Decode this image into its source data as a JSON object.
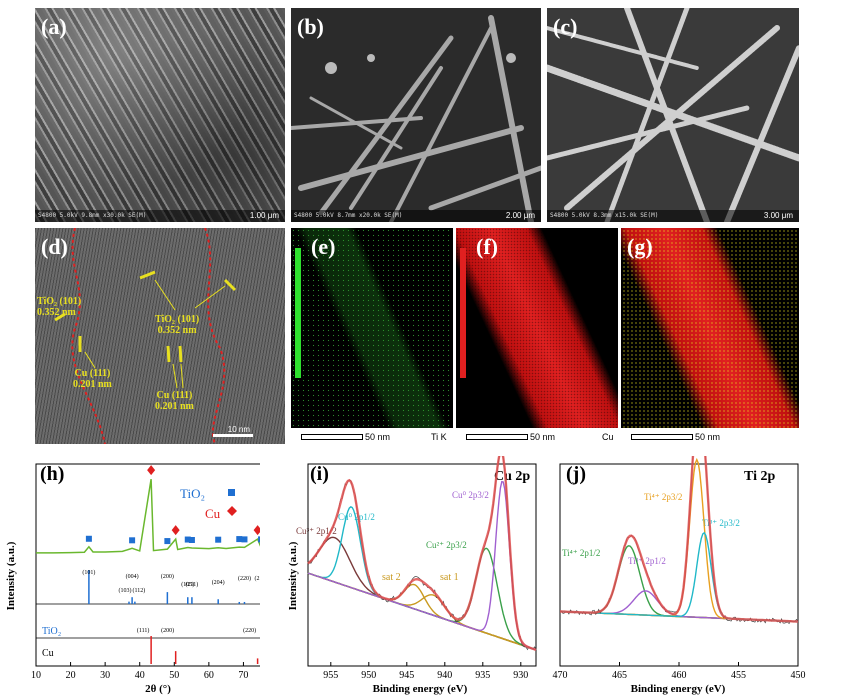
{
  "panels": {
    "a": {
      "label": "(a)",
      "info": "S4800 5.0kV 9.8mm x30.0k SE(M)",
      "scale": "1.00 μm"
    },
    "b": {
      "label": "(b)",
      "info": "S4800 5.0kV 8.7mm x20.0k SE(M)",
      "scale": "2.00 μm"
    },
    "c": {
      "label": "(c)",
      "info": "S4800 5.0kV 8.3mm x15.0k SE(M)",
      "scale": "3.00 μm"
    },
    "d": {
      "label": "(d)",
      "scale": "10 nm",
      "anno1": "TiO₂ (101)",
      "anno1b": "0.352 nm",
      "anno2": "TiO₂ (101)",
      "anno2b": "0.352 nm",
      "anno3": "Cu (111)",
      "anno3b": "0.201 nm",
      "anno4": "Cu (111)",
      "anno4b": "0.201 nm"
    },
    "e": {
      "label": "(e)",
      "scale": "50 nm",
      "element": "Ti K"
    },
    "f": {
      "label": "(f)",
      "scale": "50 nm",
      "element": "Cu"
    },
    "g": {
      "label": "(g)",
      "scale": "50 nm"
    }
  },
  "colors": {
    "tio2": "#1f6fd1",
    "cu": "#e02020",
    "xrd_line": "#6ab82e",
    "orange": "#e07a10"
  },
  "chart_data": [
    {
      "id": "h",
      "type": "line",
      "label": "(h)",
      "xlabel": "2θ (°)",
      "ylabel": "Intensity (a.u.)",
      "xlim": [
        10,
        80
      ],
      "xticks": [
        "10",
        "20",
        "30",
        "40",
        "50",
        "60",
        "70",
        "80"
      ],
      "legend": [
        {
          "name": "TiO₂",
          "marker": "square"
        },
        {
          "name": "Cu",
          "marker": "diamond"
        }
      ],
      "series": [
        {
          "name": "composite",
          "x": [
            10,
            15,
            20,
            24,
            25.3,
            26.5,
            30,
            35,
            37.8,
            40,
            43.3,
            44,
            48,
            50.4,
            51,
            53.9,
            55.1,
            60,
            62.7,
            65,
            68.8,
            70.3,
            74.1,
            75.1,
            78,
            80
          ],
          "y": [
            2,
            2,
            2.2,
            2.5,
            6,
            2.6,
            2.6,
            3,
            5,
            3.3,
            50,
            3.5,
            4.5,
            11,
            4.2,
            5.5,
            5.2,
            4.8,
            5.4,
            4.9,
            5.8,
            5.6,
            11,
            5.6,
            5,
            5
          ]
        }
      ],
      "tio2_markers": [
        25.3,
        37.8,
        48.0,
        53.9,
        55.1,
        62.7,
        68.8,
        70.3,
        75.1
      ],
      "cu_markers": [
        43.3,
        50.4,
        74.1
      ],
      "ref_tio2": {
        "name": "TiO₂",
        "peaks": [
          [
            25.3,
            100
          ],
          [
            36.9,
            7
          ],
          [
            37.8,
            20
          ],
          [
            38.6,
            7
          ],
          [
            48.0,
            35
          ],
          [
            53.9,
            20
          ],
          [
            55.1,
            20
          ],
          [
            62.7,
            14
          ],
          [
            68.8,
            6
          ],
          [
            70.3,
            6
          ],
          [
            75.1,
            10
          ]
        ],
        "labels": [
          [
            "(101)",
            25.3
          ],
          [
            "(103)",
            36.9
          ],
          [
            "(004)",
            37.8
          ],
          [
            "(112)",
            38.6
          ],
          [
            "(200)",
            48.0
          ],
          [
            "(105)",
            53.9
          ],
          [
            "(211)",
            55.1
          ],
          [
            "(204)",
            62.7
          ],
          [
            "(220)",
            70.3
          ],
          [
            "(215)",
            75.1
          ]
        ]
      },
      "ref_cu": {
        "name": "Cu",
        "peaks": [
          [
            43.3,
            100
          ],
          [
            50.4,
            46
          ],
          [
            74.1,
            20
          ]
        ],
        "labels": [
          [
            "(111)",
            43.3
          ],
          [
            "(200)",
            50.4
          ],
          [
            "(220)",
            74.1
          ]
        ]
      }
    },
    {
      "id": "i",
      "type": "line",
      "label": "(i)",
      "title": "Cu 2p",
      "xlabel": "Binding energy (eV)",
      "ylabel": "Intensity (a.u.)",
      "xlim": [
        958,
        928
      ],
      "xticks": [
        "955",
        "950",
        "945",
        "940",
        "935",
        "930"
      ],
      "peaks": [
        {
          "name": "Cu³⁺ 2p1/2",
          "center": 954.5,
          "height": 0.22,
          "width": 2.0,
          "color": "#7a3a3a"
        },
        {
          "name": "Cu⁰ 2p1/2",
          "center": 952.3,
          "height": 0.4,
          "width": 1.2,
          "color": "#20b8c8"
        },
        {
          "name": "sat 2",
          "center": 944.0,
          "height": 0.12,
          "width": 1.3,
          "color": "#c99a20"
        },
        {
          "name": "sat 1",
          "center": 941.5,
          "height": 0.1,
          "width": 1.5,
          "color": "#c99a20"
        },
        {
          "name": "Cu²⁺ 2p3/2",
          "center": 934.5,
          "height": 0.42,
          "width": 1.4,
          "color": "#3aa04a"
        },
        {
          "name": "Cu⁰ 2p3/2",
          "center": 932.4,
          "height": 0.78,
          "width": 0.9,
          "color": "#a060d0"
        }
      ],
      "labels": {
        "p1": "Cu³⁺ 2p1/2",
        "p2": "Cu⁰ 2p1/2",
        "p3": "sat 2",
        "p4": "sat 1",
        "p5": "Cu²⁺ 2p3/2",
        "p6": "Cu⁰ 2p3/2"
      }
    },
    {
      "id": "j",
      "type": "line",
      "label": "(j)",
      "title": "Ti 2p",
      "xlabel": "Binding energy (eV)",
      "ylabel": "",
      "xlim": [
        470,
        450
      ],
      "xticks": [
        "470",
        "465",
        "460",
        "455",
        "450"
      ],
      "peaks": [
        {
          "name": "Ti⁴⁺ 2p1/2",
          "center": 464.2,
          "height": 0.34,
          "width": 0.9,
          "color": "#3aa04a"
        },
        {
          "name": "Ti³⁺ 2p1/2",
          "center": 462.8,
          "height": 0.12,
          "width": 1.0,
          "color": "#a060d0"
        },
        {
          "name": "Ti⁴⁺ 2p3/2",
          "center": 458.5,
          "height": 0.78,
          "width": 0.6,
          "color": "#e8a020"
        },
        {
          "name": "Ti³⁺ 2p3/2",
          "center": 457.9,
          "height": 0.42,
          "width": 0.6,
          "color": "#20b8c8"
        }
      ],
      "labels": {
        "p1": "Ti⁴⁺ 2p1/2",
        "p2": "Ti³⁺ 2p1/2",
        "p3": "Ti⁴⁺ 2p3/2",
        "p4": "Ti³⁺ 2p3/2"
      }
    }
  ]
}
